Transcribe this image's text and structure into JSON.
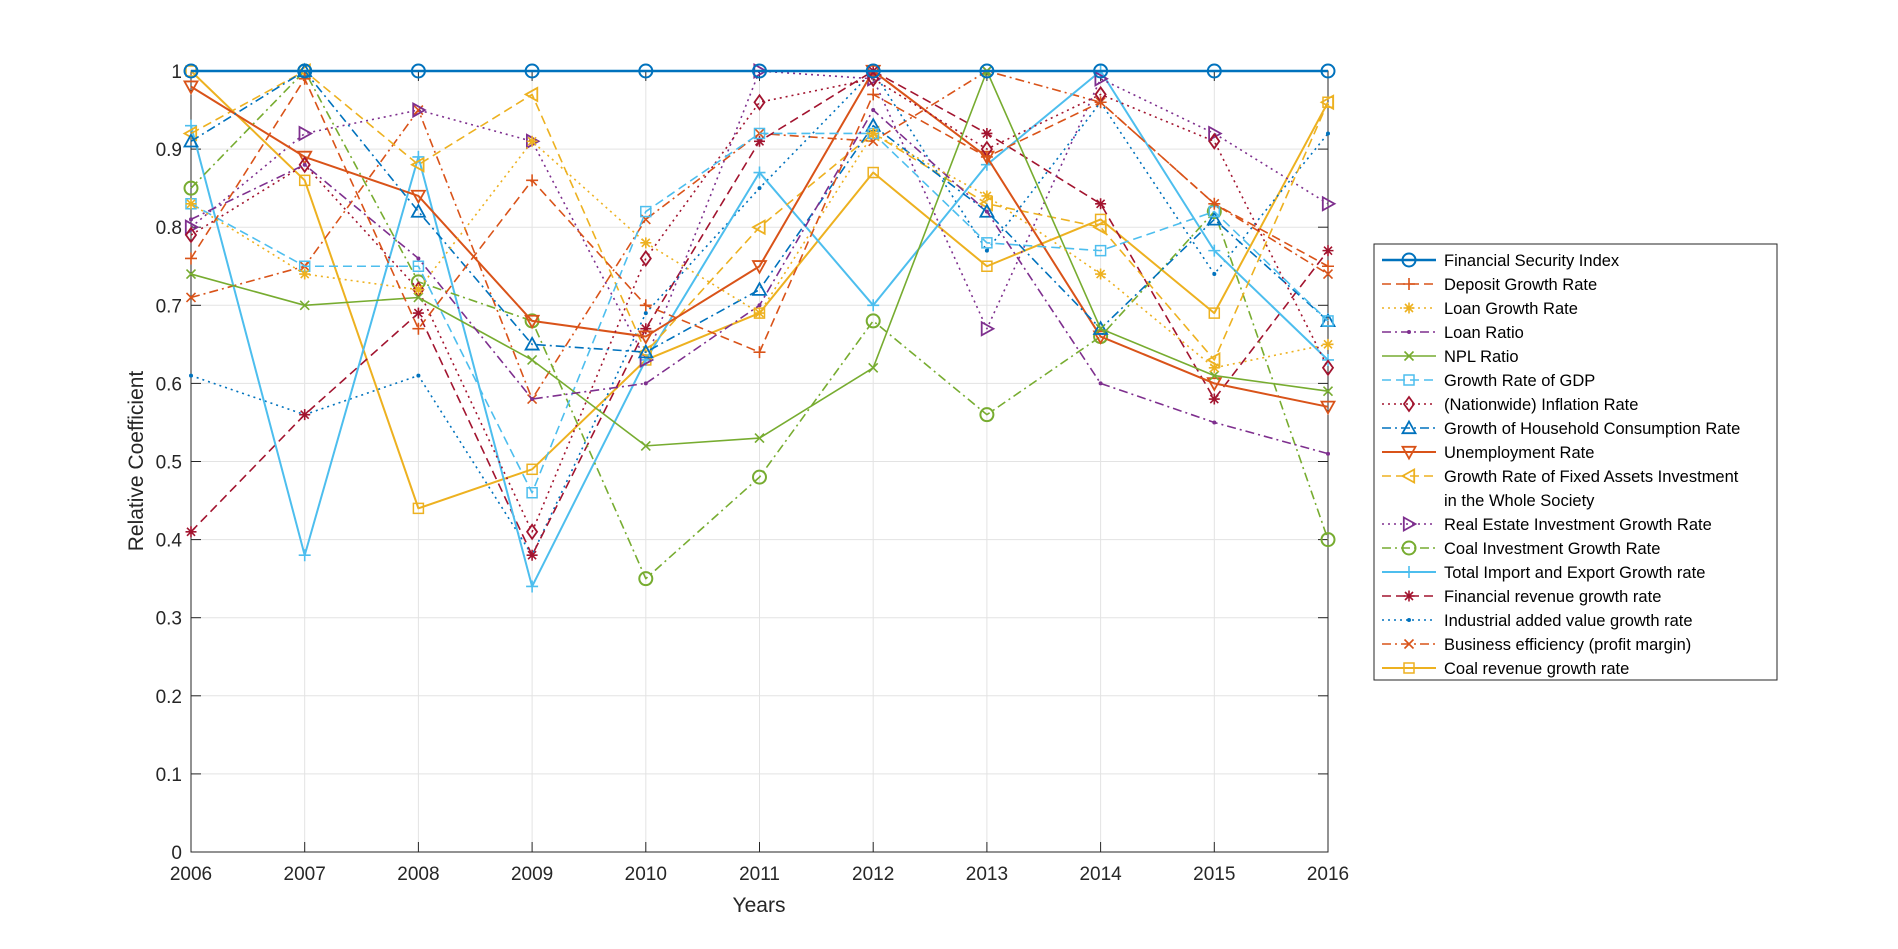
{
  "chart_data": {
    "type": "line",
    "title": "",
    "xlabel": "Years",
    "ylabel": "Relative Coefficient",
    "x": [
      2006,
      2007,
      2008,
      2009,
      2010,
      2011,
      2012,
      2013,
      2014,
      2015,
      2016
    ],
    "x_tick_labels": [
      "2006",
      "2007",
      "2008",
      "2009",
      "2010",
      "2011",
      "2012",
      "2013",
      "2014",
      "2015",
      "2016"
    ],
    "xlim": [
      2006,
      2016
    ],
    "ylim": [
      0,
      1
    ],
    "y_ticks": [
      0,
      0.1,
      0.2,
      0.3,
      0.4,
      0.5,
      0.6,
      0.7,
      0.8,
      0.9,
      1
    ],
    "y_tick_labels": [
      "0",
      "0.1",
      "0.2",
      "0.3",
      "0.4",
      "0.5",
      "0.6",
      "0.7",
      "0.8",
      "0.9",
      "1"
    ],
    "grid": true,
    "legend_position": "right",
    "series": [
      {
        "name": "Financial Security Index",
        "color": "#0072BD",
        "dash": "solid",
        "marker": "circle",
        "width": 2.6,
        "values": [
          1,
          1,
          1,
          1,
          1,
          1,
          1,
          1,
          1,
          1,
          1
        ]
      },
      {
        "name": "Deposit Growth Rate",
        "color": "#D95319",
        "dash": "dashed",
        "marker": "plus",
        "width": 1.6,
        "values": [
          0.76,
          0.99,
          0.67,
          0.86,
          0.7,
          0.64,
          0.97,
          0.89,
          0.96,
          0.83,
          0.75
        ]
      },
      {
        "name": "Loan Growth Rate",
        "color": "#EDB120",
        "dash": "dotted",
        "marker": "asterisk",
        "width": 1.6,
        "values": [
          0.83,
          0.74,
          0.72,
          0.91,
          0.78,
          0.69,
          0.92,
          0.84,
          0.74,
          0.62,
          0.65
        ]
      },
      {
        "name": "Loan Ratio",
        "color": "#7E2F8E",
        "dash": "dashdot",
        "marker": "point",
        "width": 1.6,
        "values": [
          0.81,
          0.88,
          0.76,
          0.58,
          0.6,
          0.7,
          0.95,
          0.82,
          0.6,
          0.55,
          0.51
        ]
      },
      {
        "name": "NPL Ratio",
        "color": "#77AC30",
        "dash": "solid",
        "marker": "x",
        "width": 1.6,
        "values": [
          0.74,
          0.7,
          0.71,
          0.63,
          0.52,
          0.53,
          0.62,
          1.0,
          0.67,
          0.61,
          0.59
        ]
      },
      {
        "name": "Growth Rate of GDP",
        "color": "#4DBEEE",
        "dash": "dashed",
        "marker": "square",
        "width": 1.6,
        "values": [
          0.83,
          0.75,
          0.75,
          0.46,
          0.82,
          0.92,
          0.92,
          0.78,
          0.77,
          0.82,
          0.68
        ]
      },
      {
        "name": "(Nationwide) Inflation Rate",
        "color": "#A2142F",
        "dash": "dotted",
        "marker": "diamond",
        "width": 1.6,
        "values": [
          0.79,
          0.88,
          0.72,
          0.41,
          0.76,
          0.96,
          0.99,
          0.9,
          0.97,
          0.91,
          0.62
        ]
      },
      {
        "name": "Growth of Household Consumption Rate",
        "color": "#0072BD",
        "dash": "dashdot",
        "marker": "triangle-up",
        "width": 1.6,
        "values": [
          0.91,
          1.0,
          0.82,
          0.65,
          0.64,
          0.72,
          0.93,
          0.82,
          0.67,
          0.81,
          0.68
        ]
      },
      {
        "name": "Unemployment Rate",
        "color": "#D95319",
        "dash": "solid",
        "marker": "triangle-down",
        "width": 2.0,
        "values": [
          0.98,
          0.89,
          0.84,
          0.68,
          0.66,
          0.75,
          1.0,
          0.89,
          0.66,
          0.6,
          0.57
        ]
      },
      {
        "name": "Growth Rate of Fixed Assets Investment in the Whole Society",
        "legend_lines": [
          "Growth Rate of Fixed Assets Investment",
          "in the Whole Society"
        ],
        "color": "#EDB120",
        "dash": "dashed",
        "marker": "triangle-left",
        "width": 1.6,
        "values": [
          0.92,
          1.0,
          0.88,
          0.97,
          0.64,
          0.8,
          0.92,
          0.83,
          0.8,
          0.63,
          0.96
        ]
      },
      {
        "name": "Real Estate Investment Growth Rate",
        "color": "#7E2F8E",
        "dash": "dotted",
        "marker": "triangle-right",
        "width": 1.6,
        "values": [
          0.8,
          0.92,
          0.95,
          0.91,
          0.63,
          1.0,
          0.99,
          0.67,
          0.99,
          0.92,
          0.83
        ]
      },
      {
        "name": "Coal Investment Growth Rate",
        "color": "#77AC30",
        "dash": "dashdot",
        "marker": "circle",
        "width": 1.6,
        "values": [
          0.85,
          1.0,
          0.73,
          0.68,
          0.35,
          0.48,
          0.68,
          0.56,
          0.66,
          0.82,
          0.4
        ]
      },
      {
        "name": "Total Import and Export Growth rate",
        "color": "#4DBEEE",
        "dash": "solid",
        "marker": "plus",
        "width": 2.0,
        "values": [
          0.93,
          0.38,
          0.89,
          0.34,
          0.63,
          0.87,
          0.7,
          0.88,
          1.0,
          0.77,
          0.63
        ]
      },
      {
        "name": "Financial revenue growth rate",
        "color": "#A2142F",
        "dash": "dashed",
        "marker": "asterisk",
        "width": 1.6,
        "values": [
          0.41,
          0.56,
          0.69,
          0.38,
          0.67,
          0.91,
          1.0,
          0.92,
          0.83,
          0.58,
          0.77
        ]
      },
      {
        "name": "Industrial added value growth rate",
        "color": "#0072BD",
        "dash": "dotted",
        "marker": "point",
        "width": 1.6,
        "values": [
          0.61,
          0.56,
          0.61,
          0.38,
          0.69,
          0.85,
          1.0,
          0.77,
          0.96,
          0.74,
          0.92
        ]
      },
      {
        "name": "Business efficiency (profit margin)",
        "color": "#D95319",
        "dash": "dashdot",
        "marker": "x",
        "width": 1.6,
        "values": [
          0.71,
          0.75,
          0.95,
          0.58,
          0.81,
          0.92,
          0.91,
          1.0,
          0.96,
          0.83,
          0.74
        ]
      },
      {
        "name": "Coal revenue growth rate",
        "color": "#EDB120",
        "dash": "solid",
        "marker": "square",
        "width": 2.0,
        "values": [
          1.0,
          0.86,
          0.44,
          0.49,
          0.63,
          0.69,
          0.87,
          0.75,
          0.81,
          0.69,
          0.96
        ]
      }
    ]
  }
}
